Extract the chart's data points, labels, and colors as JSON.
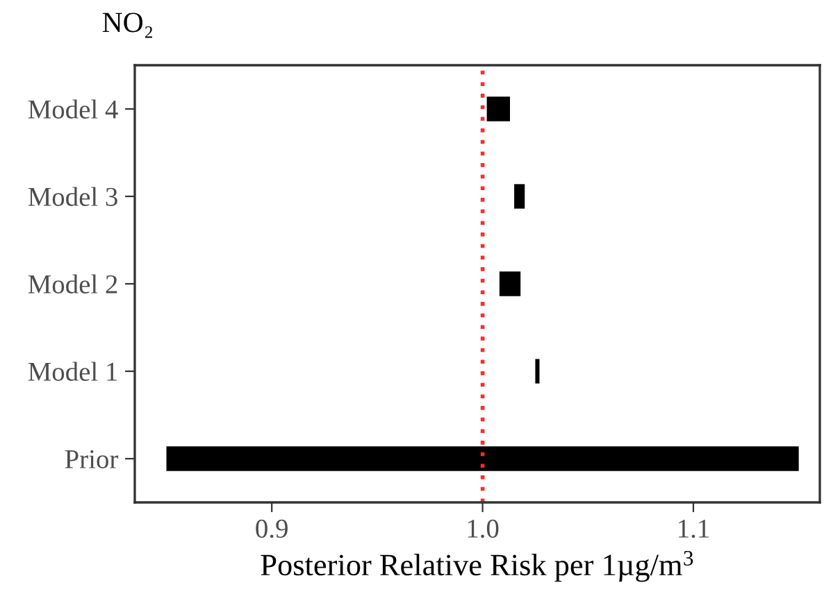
{
  "chart_data": {
    "type": "bar",
    "orientation": "horizontal",
    "title": "NO₂",
    "xlabel": "Posterior Relative Risk per 1µg/m$^{3}$",
    "categories": [
      "Model 4",
      "Model 3",
      "Model 2",
      "Model 1",
      "Prior"
    ],
    "base": [
      1.002,
      1.015,
      1.008,
      1.025,
      0.85
    ],
    "values": [
      0.011,
      0.005,
      0.01,
      0.002,
      0.3
    ],
    "color": "#000000",
    "xlim": [
      0.835,
      1.16
    ],
    "xticks": [
      {
        "value": 0.9,
        "label": "0.9"
      },
      {
        "value": 1.0,
        "label": "1.0"
      },
      {
        "value": 1.1,
        "label": "1.1"
      }
    ],
    "ref_lines": [
      {
        "axis": "x",
        "value": 1.0,
        "color": "#ff2a2a",
        "line_style": "dotted"
      }
    ],
    "grid": false,
    "legend": false
  }
}
